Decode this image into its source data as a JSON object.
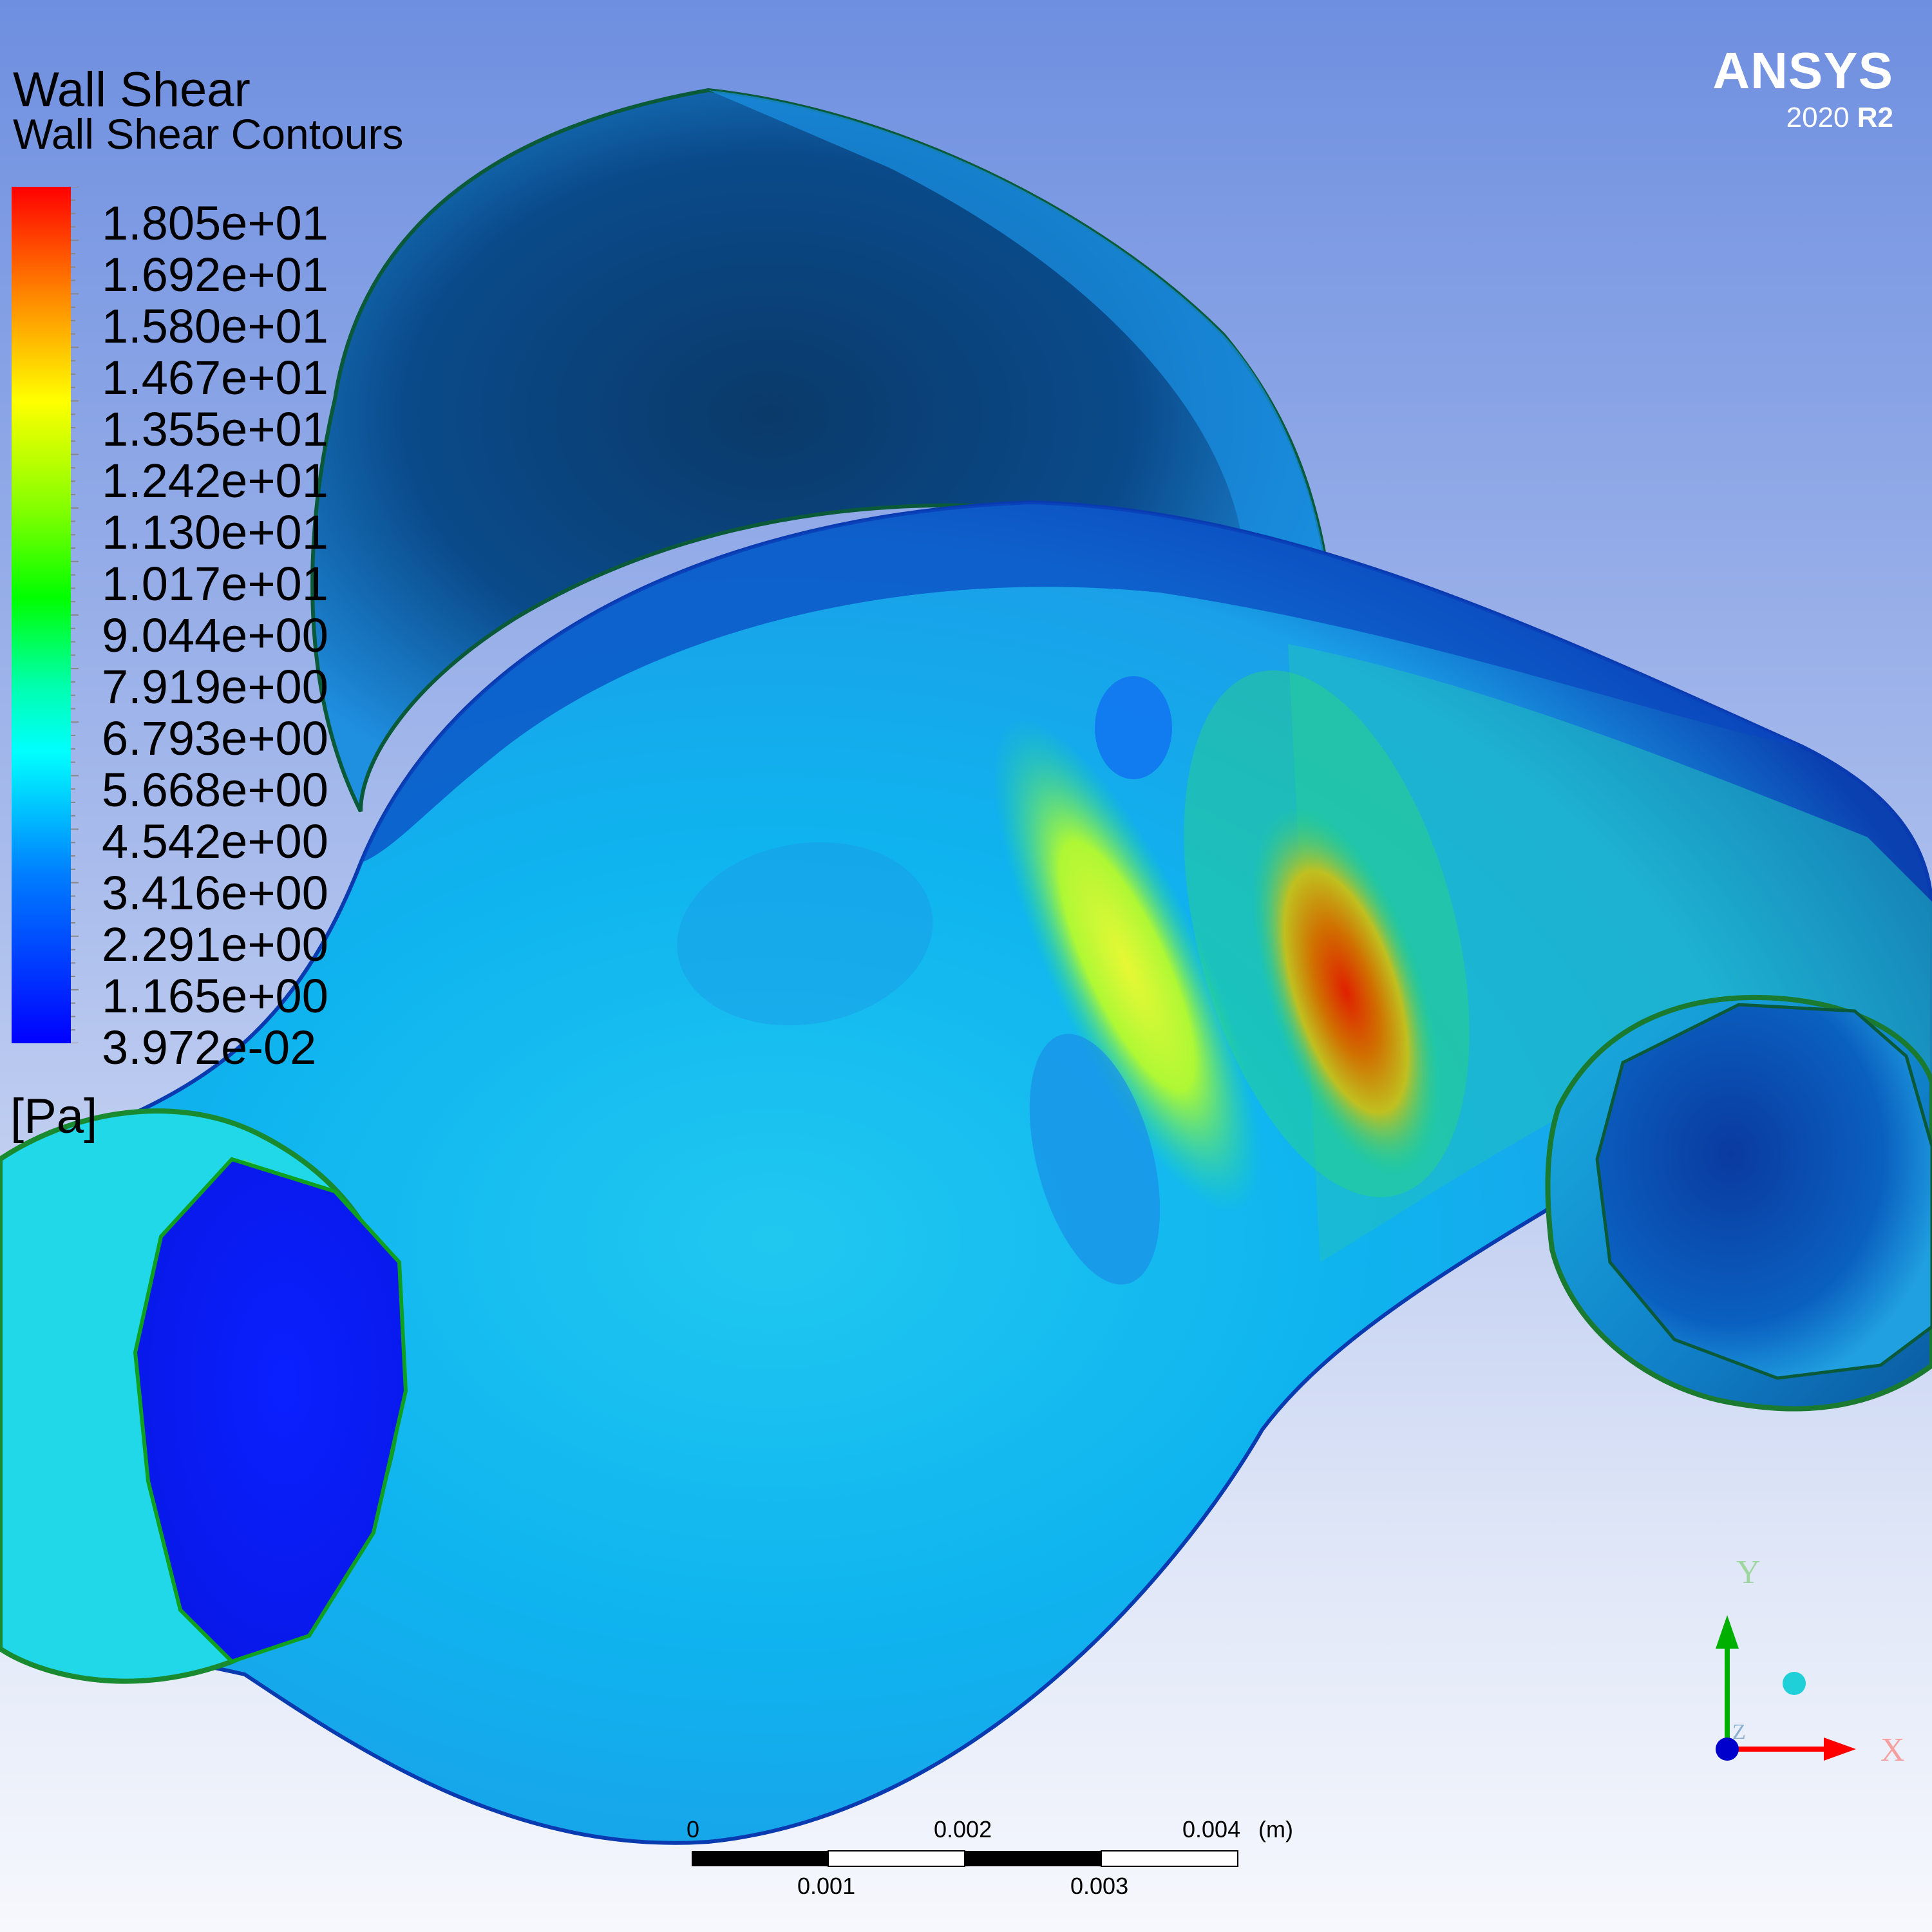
{
  "window": {
    "product_name": "ANSYS",
    "version_year": "2020",
    "version_release": "R2"
  },
  "legend": {
    "title": "Wall Shear",
    "subtitle": "Wall Shear Contours",
    "units": "[Pa]",
    "values": [
      "1.805e+01",
      "1.692e+01",
      "1.580e+01",
      "1.467e+01",
      "1.355e+01",
      "1.242e+01",
      "1.130e+01",
      "1.017e+01",
      "9.044e+00",
      "7.919e+00",
      "6.793e+00",
      "5.668e+00",
      "4.542e+00",
      "3.416e+00",
      "2.291e+00",
      "1.165e+00",
      "3.972e-02"
    ],
    "colors": {
      "max": "#ff0000",
      "high": "#ffff00",
      "mid": "#00ff00",
      "low_mid": "#00ffff",
      "min": "#0000ff"
    }
  },
  "scale_bar": {
    "top_labels": [
      "0",
      "0.002",
      "0.004"
    ],
    "bottom_labels": [
      "0.001",
      "0.003"
    ],
    "unit": "(m)"
  },
  "axis_triad": {
    "y_label": "Y",
    "x_label": "X",
    "z_label": "Z",
    "y_color": "#00b000",
    "x_color": "#ff0000",
    "z_color": "#0000cc"
  }
}
